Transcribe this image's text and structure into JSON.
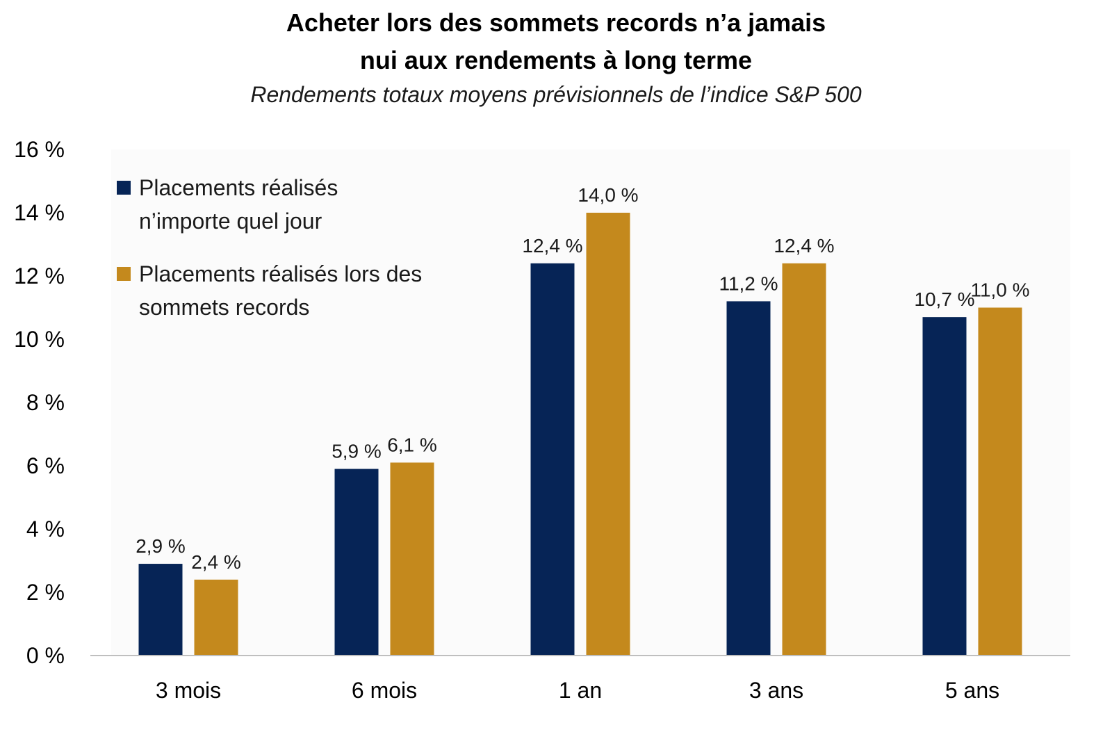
{
  "title_line1": "Acheter lors des sommets records n’a jamais",
  "title_line2": "nui aux rendements à long terme",
  "subtitle": "Rendements totaux moyens prévisionnels de l’indice S&P 500",
  "legend": {
    "series1": "Placements réalisés n’importe quel jour",
    "series2": "Placements réalisés lors des sommets records"
  },
  "colors": {
    "series1": "#062456",
    "series2": "#C4891D",
    "axis": "#bfbfbf",
    "plot_bg": "#fbfbfb"
  },
  "chart_data": {
    "type": "bar",
    "title": "Acheter lors des sommets records n’a jamais nui aux rendements à long terme",
    "subtitle": "Rendements totaux moyens prévisionnels de l’indice S&P 500",
    "categories": [
      "3 mois",
      "6 mois",
      "1 an",
      "3 ans",
      "5 ans"
    ],
    "series": [
      {
        "name": "Placements réalisés n’importe quel jour",
        "values": [
          2.9,
          5.9,
          12.4,
          11.2,
          10.7
        ],
        "labels": [
          "2,9 %",
          "5,9 %",
          "12,4 %",
          "11,2 %",
          "10,7 %"
        ]
      },
      {
        "name": "Placements réalisés lors des sommets records",
        "values": [
          2.4,
          6.1,
          14.0,
          12.4,
          11.0
        ],
        "labels": [
          "2,4 %",
          "6,1 %",
          "14,0 %",
          "12,4 %",
          "11,0 %"
        ]
      }
    ],
    "ylim": [
      0,
      16
    ],
    "yticks": [
      0,
      2,
      4,
      6,
      8,
      10,
      12,
      14,
      16
    ],
    "ytick_labels": [
      "0 %",
      "2 %",
      "4 %",
      "6 %",
      "8 %",
      "10 %",
      "12 %",
      "14 %",
      "16 %"
    ],
    "grid": false,
    "legend_position": "top-left"
  }
}
